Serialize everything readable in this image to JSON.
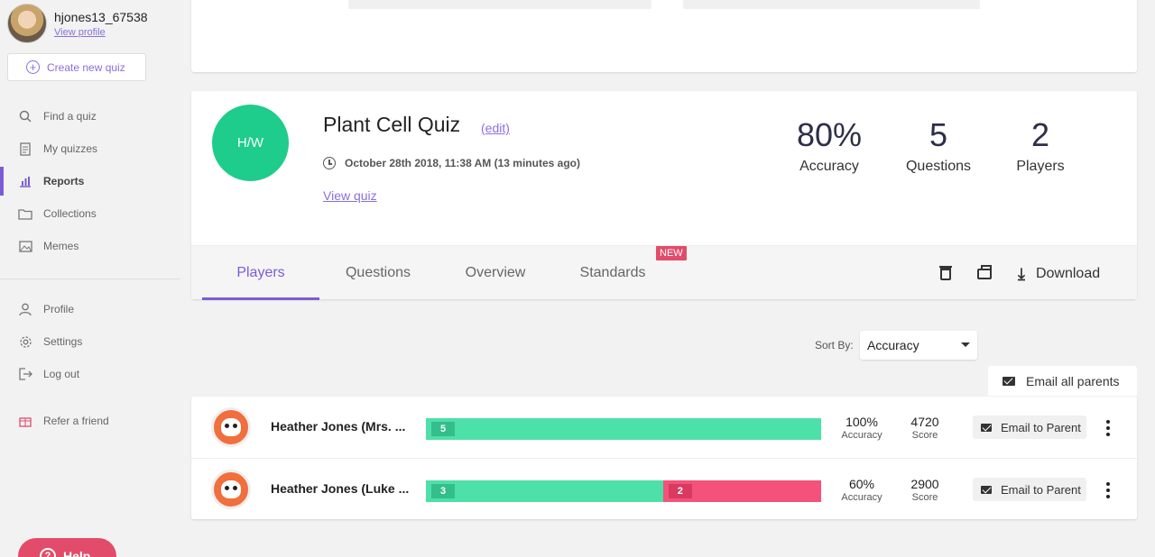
{
  "user": {
    "name": "hjones13_67538",
    "view_profile": "View profile"
  },
  "sidebar": {
    "create_quiz": "Create new quiz",
    "items": [
      {
        "label": "Find a quiz",
        "icon": "search-icon"
      },
      {
        "label": "My quizzes",
        "icon": "document-icon"
      },
      {
        "label": "Reports",
        "icon": "bar-chart-icon",
        "active": true
      },
      {
        "label": "Collections",
        "icon": "folder-icon"
      },
      {
        "label": "Memes",
        "icon": "image-icon"
      }
    ],
    "account_items": [
      {
        "label": "Profile",
        "icon": "user-icon"
      },
      {
        "label": "Settings",
        "icon": "gear-icon"
      },
      {
        "label": "Log out",
        "icon": "logout-icon"
      }
    ],
    "refer": {
      "label": "Refer a friend",
      "icon": "gift-icon"
    },
    "help": "Help"
  },
  "quiz": {
    "logo_text": "H/W",
    "title": "Plant Cell Quiz",
    "edit": "(edit)",
    "date": "October 28th 2018, 11:38 AM (13 minutes ago)",
    "view_quiz": "View quiz",
    "stats": [
      {
        "value": "80%",
        "label": "Accuracy"
      },
      {
        "value": "5",
        "label": "Questions"
      },
      {
        "value": "2",
        "label": "Players"
      }
    ]
  },
  "tabs": [
    {
      "label": "Players",
      "active": true
    },
    {
      "label": "Questions"
    },
    {
      "label": "Overview"
    },
    {
      "label": "Standards",
      "badge": "NEW"
    }
  ],
  "toolbar": {
    "download": "Download"
  },
  "sort": {
    "label": "Sort By:",
    "value": "Accuracy"
  },
  "email_all": "Email all parents",
  "players": [
    {
      "name": "Heather Jones (Mrs. ...",
      "correct": 5,
      "wrong": 0,
      "accuracy": "100%",
      "accuracy_label": "Accuracy",
      "score": "4720",
      "score_label": "Score",
      "email": "Email to Parent"
    },
    {
      "name": "Heather Jones (Luke ...",
      "correct": 3,
      "wrong": 2,
      "accuracy": "60%",
      "accuracy_label": "Accuracy",
      "score": "2900",
      "score_label": "Score",
      "email": "Email to Parent"
    }
  ],
  "colors": {
    "accent": "#7b5cd6",
    "quiz_logo": "#1ecc8c",
    "correct": "#4de0a8",
    "wrong": "#f4527a",
    "badge": "#e24c6a"
  }
}
